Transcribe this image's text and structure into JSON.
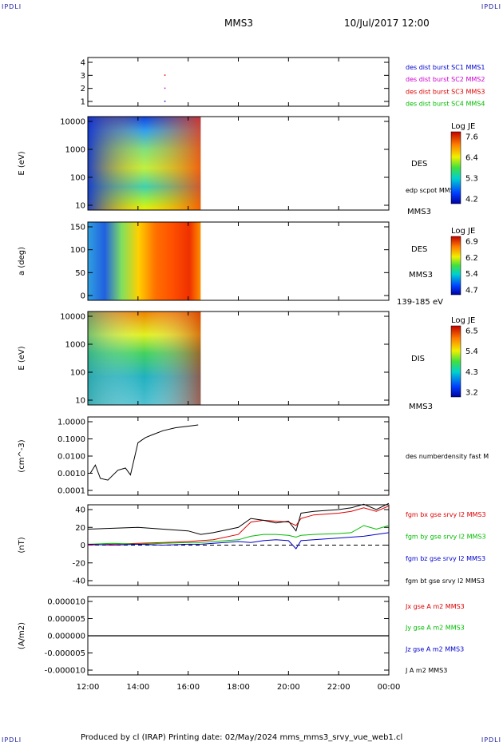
{
  "corner_label": "IPDLI",
  "header": {
    "spacecraft": "MMS3",
    "datetime": "10/Jul/2017 12:00"
  },
  "footer": "Produced by cl (IRAP)   Printing date: 02/May/2024   mms_mms3_srvy_vue_web1.cl",
  "x_ticks": [
    "12:00",
    "14:00",
    "16:00",
    "18:00",
    "20:00",
    "22:00",
    "00:00"
  ],
  "panels": [
    {
      "id": "burst",
      "ylabel": "",
      "yticks": [
        "4",
        "3",
        "2",
        "1"
      ],
      "legend": [
        {
          "text": "des dist burst SC1 MMS1",
          "color": "#0000cc"
        },
        {
          "text": "des dist burst SC2 MMS2",
          "color": "#cc00cc"
        },
        {
          "text": "des dist burst SC3 MMS3",
          "color": "#dd0000"
        },
        {
          "text": "des dist burst SC4 MMS4",
          "color": "#00bb00"
        }
      ]
    },
    {
      "id": "des_energy",
      "ylabel": "E (eV)",
      "yticks": [
        "10000",
        "1000",
        "100",
        "10"
      ],
      "right": [
        "DES",
        "edp scpot MMS3",
        "MMS3"
      ],
      "colorbar": {
        "title": "Log JE",
        "ticks": [
          "7.6",
          "6.4",
          "5.3",
          "4.2"
        ]
      }
    },
    {
      "id": "des_pitch",
      "ylabel": "a (deg)",
      "yticks": [
        "150",
        "100",
        "50",
        "0"
      ],
      "right": [
        "DES",
        "MMS3",
        "139-185 eV"
      ],
      "colorbar": {
        "title": "Log JE",
        "ticks": [
          "6.9",
          "6.2",
          "5.4",
          "4.7"
        ]
      }
    },
    {
      "id": "dis_energy",
      "ylabel": "E (eV)",
      "yticks": [
        "10000",
        "1000",
        "100",
        "10"
      ],
      "right": [
        "DIS",
        "MMS3"
      ],
      "colorbar": {
        "title": "Log JE",
        "ticks": [
          "6.5",
          "5.4",
          "4.3",
          "3.2"
        ]
      }
    },
    {
      "id": "density",
      "ylabel": "(cm^-3)",
      "yticks": [
        "1.0000",
        "0.1000",
        "0.0100",
        "0.0010",
        "0.0001"
      ],
      "legend": [
        {
          "text": "des numberdensity fast M",
          "color": "#000000"
        }
      ]
    },
    {
      "id": "bfield",
      "ylabel": "(nT)",
      "yticks": [
        "40",
        "20",
        "0",
        "-20",
        "-40"
      ],
      "legend": [
        {
          "text": "fgm bx gse srvy l2 MMS3",
          "color": "#dd0000"
        },
        {
          "text": "fgm by gse srvy l2 MMS3",
          "color": "#00bb00"
        },
        {
          "text": "fgm bz gse srvy l2 MMS3",
          "color": "#0000cc"
        },
        {
          "text": "fgm bt gse srvy l2 MMS3",
          "color": "#000000"
        }
      ]
    },
    {
      "id": "current",
      "ylabel": "(A/m2)",
      "yticks": [
        "0.000010",
        "0.000005",
        "0.000000",
        "-0.000005",
        "-0.000010"
      ],
      "legend": [
        {
          "text": "Jx gse A m2 MMS3",
          "color": "#dd0000"
        },
        {
          "text": "Jy gse A m2 MMS3",
          "color": "#00bb00"
        },
        {
          "text": "Jz gse A m2 MMS3",
          "color": "#0000cc"
        },
        {
          "text": "J A m2 MMS3",
          "color": "#000000"
        }
      ]
    }
  ],
  "chart_data": {
    "type": "line",
    "title": "MMS3",
    "x_range": [
      "12:00",
      "00:00"
    ],
    "burst_points": [
      {
        "sc": 3,
        "time_h": 15.05
      },
      {
        "sc": 2,
        "time_h": 15.05
      },
      {
        "sc": 1,
        "time_h": 15.05
      }
    ],
    "data_coverage_end_h": 16.5,
    "density": {
      "ylim": [
        0.0001,
        1.0
      ],
      "scale": "log",
      "x": [
        12.1,
        12.3,
        12.5,
        12.8,
        13.2,
        13.5,
        13.7,
        14.0,
        14.3,
        14.6,
        15.0,
        15.5,
        16.0,
        16.4
      ],
      "values": [
        0.001,
        0.003,
        0.0005,
        0.0004,
        0.0015,
        0.002,
        0.0008,
        0.06,
        0.12,
        0.18,
        0.3,
        0.45,
        0.55,
        0.65
      ]
    },
    "bfield": {
      "ylim": [
        -50,
        50
      ],
      "x": [
        12,
        13,
        14,
        15,
        16,
        16.5,
        17,
        18,
        18.5,
        19,
        19.5,
        20,
        20.3,
        20.5,
        21,
        22,
        22.5,
        23,
        23.5,
        24
      ],
      "series": [
        {
          "name": "fgm bx gse srvy l2 MMS3",
          "color": "#dd0000",
          "values": [
            0,
            1,
            2,
            3,
            4,
            5,
            6,
            12,
            26,
            28,
            27,
            26,
            22,
            30,
            34,
            36,
            38,
            42,
            38,
            44
          ]
        },
        {
          "name": "fgm by gse srvy l2 MMS3",
          "color": "#00bb00",
          "values": [
            1,
            2,
            1,
            2,
            3,
            3,
            4,
            6,
            10,
            12,
            12,
            11,
            9,
            11,
            12,
            13,
            14,
            22,
            18,
            22
          ]
        },
        {
          "name": "fgm bz gse srvy l2 MMS3",
          "color": "#0000cc",
          "values": [
            1,
            0,
            1,
            0,
            1,
            1,
            2,
            4,
            3,
            5,
            6,
            5,
            -4,
            5,
            6,
            8,
            9,
            10,
            12,
            14
          ]
        },
        {
          "name": "fgm bt gse srvy l2 MMS3",
          "color": "#000000",
          "values": [
            18,
            19,
            20,
            18,
            16,
            12,
            14,
            20,
            30,
            28,
            25,
            27,
            16,
            36,
            38,
            40,
            42,
            46,
            40,
            47
          ]
        }
      ]
    },
    "current": {
      "ylim": [
        -1e-05,
        1e-05
      ],
      "series": [
        {
          "name": "J A m2 MMS3",
          "values": [
            0,
            0
          ]
        }
      ]
    }
  }
}
